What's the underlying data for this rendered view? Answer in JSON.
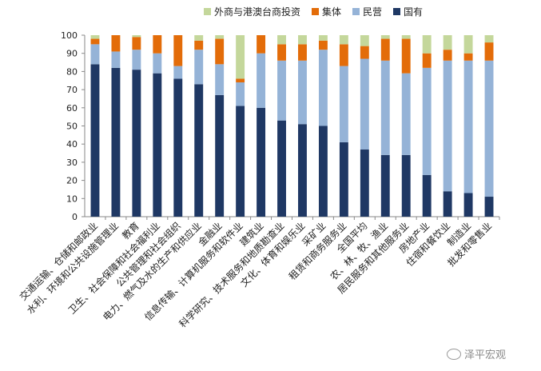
{
  "watermark": {
    "text": "泽平宏观"
  },
  "chart_data": {
    "type": "bar",
    "stacked": true,
    "categories": [
      "交通运输、仓储和邮政业",
      "水利、环境和公共设施管理业",
      "教育",
      "卫生、社会保障和社会福利业",
      "公共管理和社会组织",
      "电力、燃气及水的生产和供应业",
      "金融业",
      "信息传输、计算机服务和软件业",
      "建筑业",
      "科学研究、技术服务和地质勘查业",
      "文化、体育和娱乐业",
      "采矿业",
      "租赁和商务服务业",
      "全国平均",
      "农、林、牧、渔业",
      "居民服务和其他服务业",
      "房地产业",
      "住宿和餐饮业",
      "制造业",
      "批发和零售业"
    ],
    "series": [
      {
        "name": "国有",
        "color": "#1f3864",
        "values": [
          84,
          82,
          81,
          79,
          76,
          73,
          67,
          61,
          60,
          53,
          51,
          50,
          41,
          37,
          34,
          34,
          23,
          14,
          13,
          11
        ]
      },
      {
        "name": "民营",
        "color": "#95b3d7",
        "values": [
          11,
          9,
          11,
          11,
          7,
          19,
          17,
          13,
          30,
          33,
          35,
          42,
          42,
          50,
          52,
          45,
          59,
          72,
          73,
          75
        ]
      },
      {
        "name": "集体",
        "color": "#e36c09",
        "values": [
          3,
          9,
          7,
          10,
          17,
          5,
          14,
          2,
          10,
          9,
          9,
          5,
          12,
          7,
          12,
          19,
          8,
          6,
          4,
          10
        ]
      },
      {
        "name": "外商与港澳台商投资",
        "color": "#c4d79b",
        "values": [
          2,
          0,
          1,
          0,
          0,
          3,
          2,
          24,
          0,
          5,
          5,
          3,
          5,
          6,
          2,
          2,
          10,
          8,
          10,
          4
        ]
      }
    ],
    "legend_order": [
      "外商与港澳台商投资",
      "集体",
      "民营",
      "国有"
    ],
    "ylim": [
      0,
      100
    ],
    "yticks": [
      0,
      10,
      20,
      30,
      40,
      50,
      60,
      70,
      80,
      90,
      100
    ],
    "legend_position": "top",
    "grid": false
  }
}
